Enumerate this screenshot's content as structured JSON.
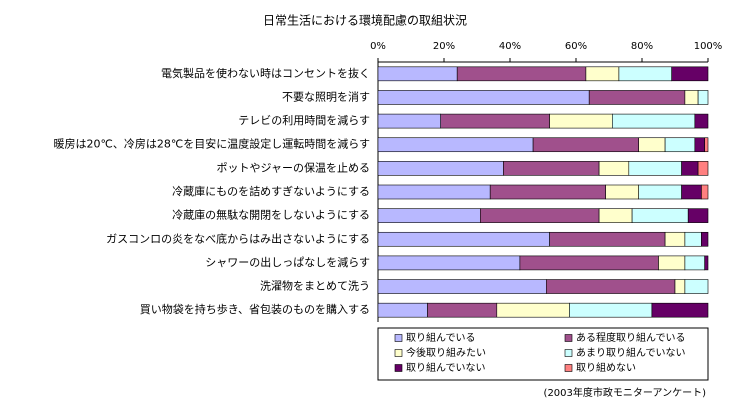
{
  "chart_data": {
    "type": "stacked_barh",
    "title": "日常生活における環境配慮の取組状況",
    "source": "(2003年度市政モニターアンケート)",
    "categories": [
      "電気製品を使わない時はコンセントを抜く",
      "不要な照明を消す",
      "テレビの利用時間を減らす",
      "暖房は20℃、冷房は28℃を目安に温度設定し運転時間を減らす",
      "ポットやジャーの保温を止める",
      "冷蔵庫にものを詰めすぎないようにする",
      "冷蔵庫の無駄な開閉をしないようにする",
      "ガスコンロの炎をなべ底からはみ出さないようにする",
      "シャワーの出しっぱなしを減らす",
      "洗濯物をまとめて洗う",
      "買い物袋を持ち歩き、省包装のものを購入する"
    ],
    "series": [
      {
        "name": "取り組んでいる",
        "color": "#b8b8ff",
        "values": [
          24,
          64,
          19,
          47,
          38,
          34,
          31,
          52,
          43,
          51,
          15
        ]
      },
      {
        "name": "ある程度取り組んでいる",
        "color": "#a0508c",
        "values": [
          39,
          29,
          33,
          32,
          29,
          35,
          36,
          35,
          42,
          39,
          21
        ]
      },
      {
        "name": "今後取り組みたい",
        "color": "#ffffcc",
        "values": [
          10,
          4,
          19,
          8,
          9,
          10,
          10,
          6,
          8,
          3,
          22
        ]
      },
      {
        "name": "あまり取り組んでいない",
        "color": "#ccffff",
        "values": [
          16,
          3,
          25,
          9,
          16,
          13,
          17,
          5,
          6,
          7,
          25
        ]
      },
      {
        "name": "取り組んでいない",
        "color": "#660066",
        "values": [
          11,
          0,
          4,
          3,
          5,
          6,
          6,
          2,
          1,
          0,
          17
        ]
      },
      {
        "name": "取り組めない",
        "color": "#ff8080",
        "values": [
          0,
          0,
          0,
          1,
          3,
          2,
          0,
          0,
          0,
          0,
          0
        ]
      }
    ],
    "xlim": [
      0,
      100
    ],
    "xticks": [
      {
        "value": 0,
        "label": "0%"
      },
      {
        "value": 20,
        "label": "20%"
      },
      {
        "value": 40,
        "label": "40%"
      },
      {
        "value": 60,
        "label": "60%"
      },
      {
        "value": 80,
        "label": "80%"
      },
      {
        "value": 100,
        "label": "100%"
      }
    ]
  }
}
